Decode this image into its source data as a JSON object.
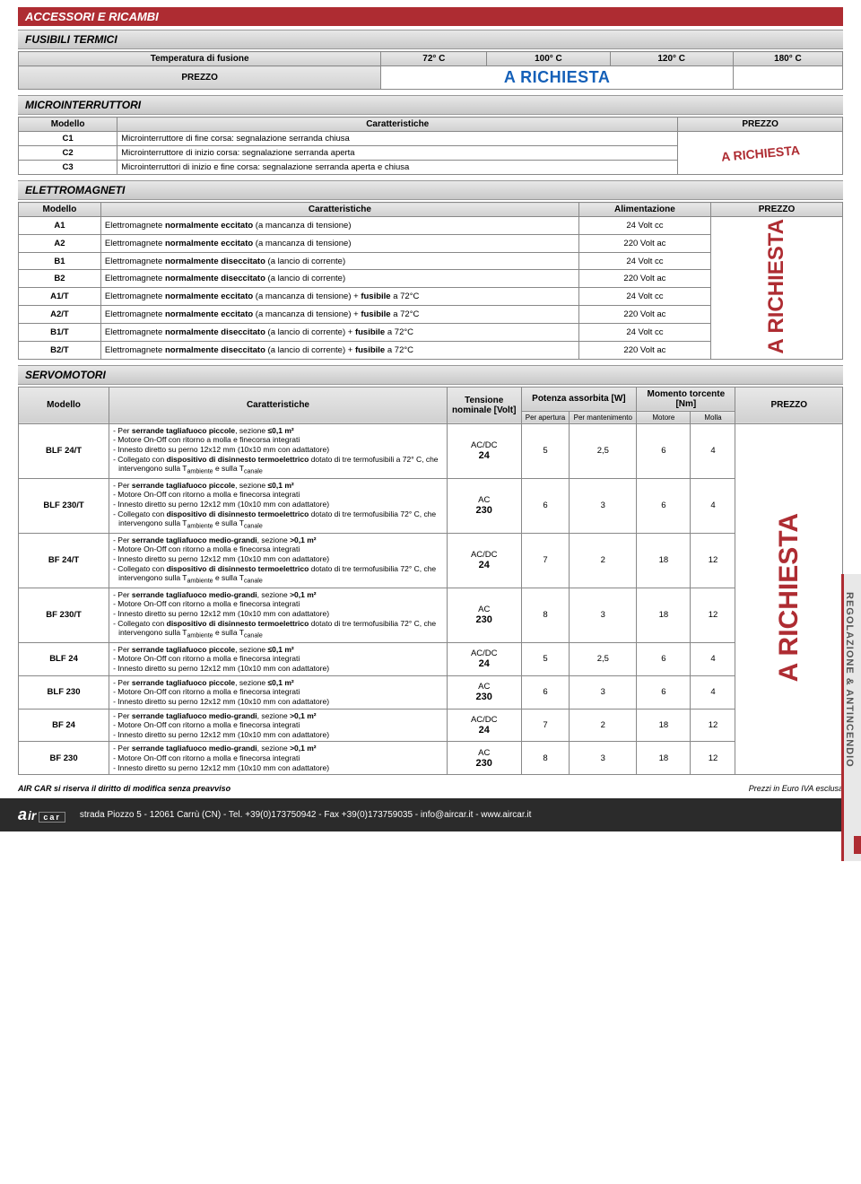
{
  "colors": {
    "brand_red": "#ae2c32",
    "blue": "#1560b8",
    "grey_band": "#d0d0d0",
    "dark_footer": "#2b2b2b"
  },
  "header": "ACCESSORI E RICAMBI",
  "side_tab": "REGOLAZIONE & ANTINCENDIO",
  "a_richiesta": "A RICHIESTA",
  "fusibili": {
    "title": "FUSIBILI TERMICI",
    "row_label": "Temperatura di fusione",
    "temps": [
      "72° C",
      "100° C",
      "120° C",
      "180° C"
    ],
    "prezzo_label": "PREZZO"
  },
  "micro": {
    "title": "MICROINTERRUTTORI",
    "cols": [
      "Modello",
      "Caratteristiche",
      "PREZZO"
    ],
    "rows": [
      {
        "m": "C1",
        "c": "Microinterruttore di fine corsa: segnalazione serranda chiusa"
      },
      {
        "m": "C2",
        "c": "Microinterruttore di inizio corsa: segnalazione serranda aperta"
      },
      {
        "m": "C3",
        "c": "Microinterruttori di inizio e fine corsa: segnalazione serranda aperta e chiusa"
      }
    ]
  },
  "elettro": {
    "title": "ELETTROMAGNETI",
    "cols": [
      "Modello",
      "Caratteristiche",
      "Alimentazione",
      "PREZZO"
    ],
    "rows": [
      {
        "m": "A1",
        "c": "Elettromagnete <b>normalmente eccitato</b> (a mancanza di tensione)",
        "a": "24 Volt cc"
      },
      {
        "m": "A2",
        "c": "Elettromagnete <b>normalmente eccitato</b> (a mancanza di tensione)",
        "a": "220 Volt ac"
      },
      {
        "m": "B1",
        "c": "Elettromagnete <b>normalmente diseccitato</b> (a lancio di corrente)",
        "a": "24 Volt cc"
      },
      {
        "m": "B2",
        "c": "Elettromagnete <b>normalmente diseccitato</b> (a lancio di corrente)",
        "a": "220 Volt ac"
      },
      {
        "m": "A1/T",
        "c": "Elettromagnete <b>normalmente eccitato</b> (a mancanza di tensione) + <b>fusibile</b> a 72°C",
        "a": "24 Volt cc"
      },
      {
        "m": "A2/T",
        "c": "Elettromagnete <b>normalmente eccitato</b> (a mancanza di tensione) + <b>fusibile</b> a 72°C",
        "a": "220 Volt ac"
      },
      {
        "m": "B1/T",
        "c": "Elettromagnete <b>normalmente diseccitato</b> (a lancio di corrente) + <b>fusibile</b> a 72°C",
        "a": "24 Volt cc"
      },
      {
        "m": "B2/T",
        "c": "Elettromagnete <b>normalmente diseccitato</b> (a lancio di corrente) + <b>fusibile</b> a 72°C",
        "a": "220 Volt ac"
      }
    ]
  },
  "servo": {
    "title": "SERVOMOTORI",
    "cols": {
      "modello": "Modello",
      "caratt": "Caratteristiche",
      "tensione": "Tensione nominale [Volt]",
      "potenza": "Potenza assorbita [W]",
      "momento": "Momento torcente [Nm]",
      "prezzo": "PREZZO",
      "per_apertura": "Per apertura",
      "per_mant": "Per mantenimento",
      "motore": "Motore",
      "molla": "Molla"
    },
    "rows": [
      {
        "m": "BLF 24/T",
        "desc": [
          "- Per <b>serrande tagliafuoco piccole</b>, sezione <b>≤0,1 m²</b>",
          "- Motore On-Off con ritorno a molla e finecorsa integrati",
          "- Innesto diretto su perno 12x12 mm (10x10 mm con adattatore)",
          "- Collegato con <b>dispositivo di disinnesto termoelettrico</b> dotato di tre termofusibili a 72° C, che intervengono sulla T<sub>ambiente</sub> e sulla T<sub>canale</sub>"
        ],
        "v1": "AC/DC",
        "v2": "24",
        "pa": "5",
        "pm": "2,5",
        "mt": "6",
        "ml": "4"
      },
      {
        "m": "BLF 230/T",
        "desc": [
          "- Per <b>serrande tagliafuoco piccole</b>, sezione <b>≤0,1 m²</b>",
          "- Motore On-Off con ritorno a molla e finecorsa integrati",
          "- Innesto diretto su perno 12x12 mm (10x10 mm con adattatore)",
          "- Collegato con <b>dispositivo di disinnesto termoelettrico</b> dotato di tre termofusibilia 72° C, che intervengono sulla T<sub>ambiente</sub> e sulla T<sub>canale</sub>"
        ],
        "v1": "AC",
        "v2": "230",
        "pa": "6",
        "pm": "3",
        "mt": "6",
        "ml": "4"
      },
      {
        "m": "BF 24/T",
        "desc": [
          "- Per <b>serrande tagliafuoco medio-grandi</b>, sezione <b>>0,1 m²</b>",
          "- Motore On-Off con ritorno a molla e finecorsa integrati",
          "- Innesto diretto su perno 12x12 mm (10x10 mm con adattatore)",
          "- Collegato con <b>dispositivo di disinnesto termoelettrico</b> dotato di tre termofusibilia 72° C, che intervengono sulla T<sub>ambiente</sub> e sulla T<sub>canale</sub>"
        ],
        "v1": "AC/DC",
        "v2": "24",
        "pa": "7",
        "pm": "2",
        "mt": "18",
        "ml": "12"
      },
      {
        "m": "BF 230/T",
        "desc": [
          "- Per <b>serrande tagliafuoco medio-grandi</b>, sezione <b>>0,1 m²</b>",
          "- Motore On-Off con ritorno a molla e finecorsa integrati",
          "- Innesto diretto su perno 12x12 mm (10x10 mm con adattatore)",
          "- Collegato con <b>dispositivo di disinnesto termoelettrico</b> dotato di tre termofusibilia 72° C, che intervengono sulla T<sub>ambiente</sub> e sulla T<sub>canale</sub>"
        ],
        "v1": "AC",
        "v2": "230",
        "pa": "8",
        "pm": "3",
        "mt": "18",
        "ml": "12"
      },
      {
        "m": "BLF 24",
        "desc": [
          "- Per <b>serrande tagliafuoco piccole</b>, sezione <b>≤0,1 m²</b>",
          "- Motore On-Off con ritorno a molla e finecorsa integrati",
          "- Innesto diretto su perno 12x12 mm (10x10 mm con adattatore)"
        ],
        "v1": "AC/DC",
        "v2": "24",
        "pa": "5",
        "pm": "2,5",
        "mt": "6",
        "ml": "4"
      },
      {
        "m": "BLF 230",
        "desc": [
          "- Per <b>serrande tagliafuoco piccole</b>, sezione <b>≤0,1 m²</b>",
          "- Motore On-Off con ritorno a molla e finecorsa integrati",
          "- Innesto diretto su perno 12x12 mm (10x10 mm con adattatore)"
        ],
        "v1": "AC",
        "v2": "230",
        "pa": "6",
        "pm": "3",
        "mt": "6",
        "ml": "4"
      },
      {
        "m": "BF 24",
        "desc": [
          "- Per <b>serrande tagliafuoco medio-grandi</b>, sezione <b>>0,1 m²</b>",
          "- Motore On-Off con ritorno a molla e finecorsa integrati",
          "- Innesto diretto su perno 12x12 mm (10x10 mm con adattatore)"
        ],
        "v1": "AC/DC",
        "v2": "24",
        "pa": "7",
        "pm": "2",
        "mt": "18",
        "ml": "12"
      },
      {
        "m": "BF 230",
        "desc": [
          "- Per <b>serrande tagliafuoco medio-grandi</b>, sezione <b>>0,1 m²</b>",
          "- Motore On-Off con ritorno a molla e finecorsa integrati",
          "- Innesto diretto su perno 12x12 mm (10x10 mm con adattatore)"
        ],
        "v1": "AC",
        "v2": "230",
        "pa": "8",
        "pm": "3",
        "mt": "18",
        "ml": "12"
      }
    ]
  },
  "footer": {
    "left": "AIR CAR si riserva il diritto di modifica senza preavviso",
    "right": "Prezzi in Euro IVA esclusa",
    "logo1": "a",
    "logo2": "ir",
    "logo3": "car",
    "address": "strada Piozzo 5 - 12061 Carrù (CN) - Tel. +39(0)173750942 - Fax +39(0)173759035 - info@aircar.it - www.aircar.it"
  }
}
